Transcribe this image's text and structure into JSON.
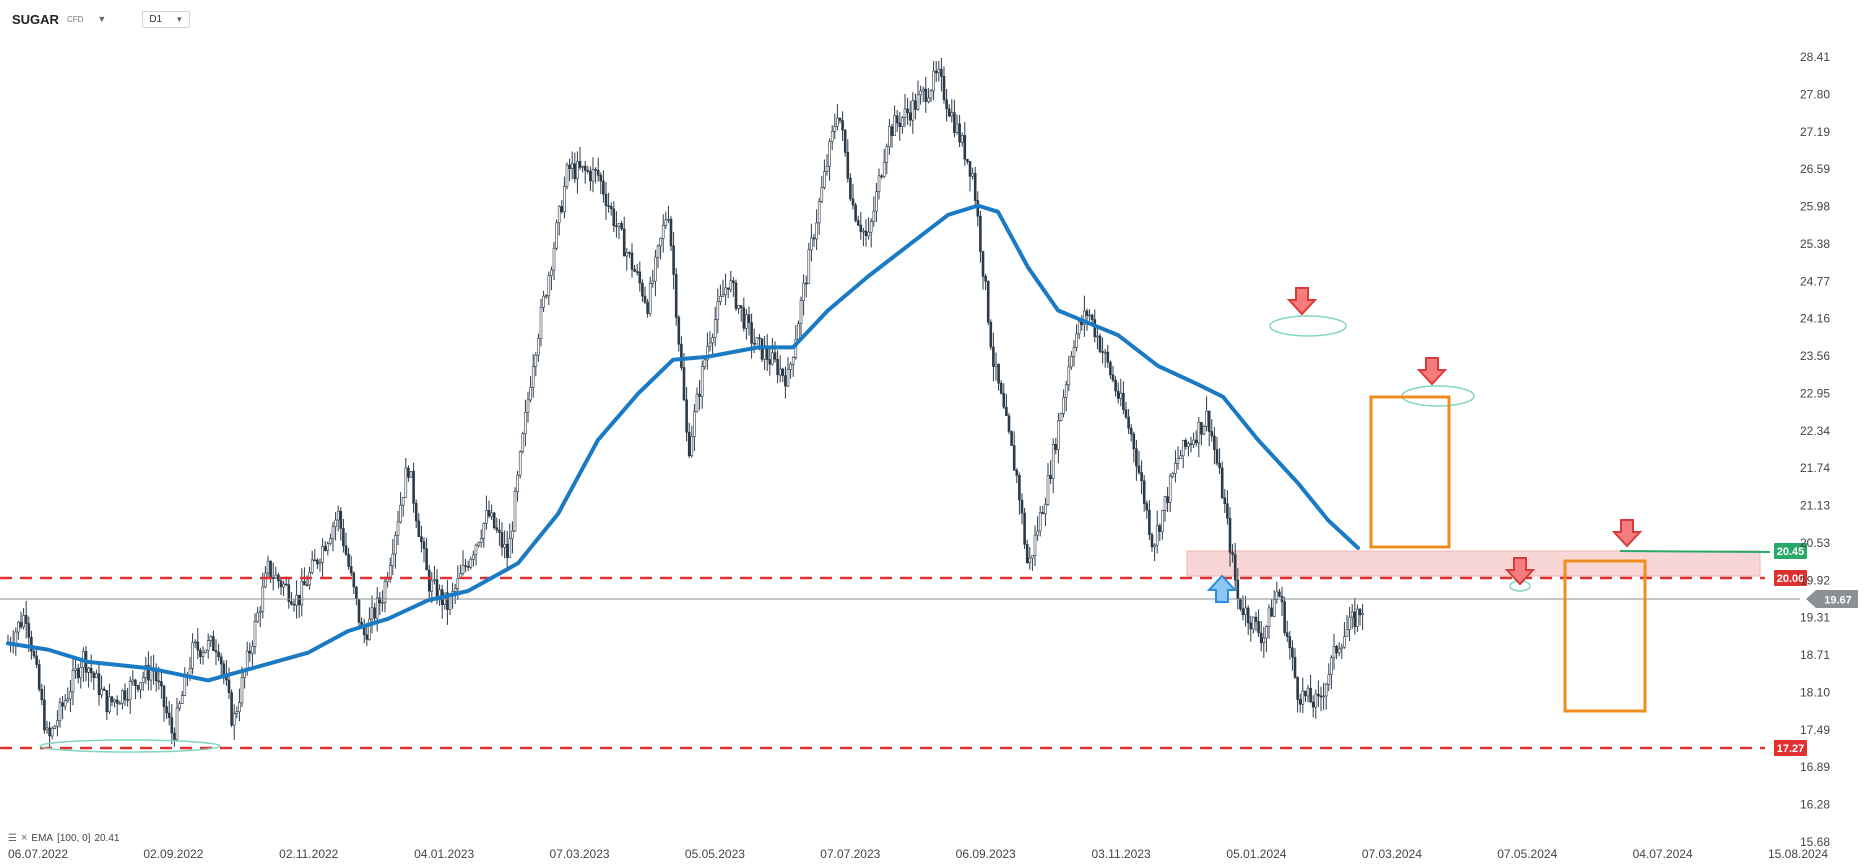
{
  "header": {
    "symbol": "SUGAR",
    "symbol_sub": "CFD",
    "timeframe": "D1"
  },
  "indicator": {
    "label": "EMA",
    "params": "[100, 0]",
    "value": "20.41"
  },
  "colors": {
    "ema": "#1a7ac4",
    "candle": "#2c3a48",
    "support_line": "#e03030",
    "resistance_zone": "#f6c9c9",
    "box": "#f08c1e",
    "sell_arrow": "#e84848",
    "buy_arrow": "#3aa0e8",
    "ellipse": "#7fd6c0",
    "trendline": "#2aa86a",
    "current_price": "#8a9196"
  },
  "chart_data": {
    "type": "line",
    "yticks": [
      "28.41",
      "27.80",
      "27.19",
      "26.59",
      "25.98",
      "25.38",
      "24.77",
      "24.16",
      "23.56",
      "22.95",
      "22.34",
      "21.74",
      "21.13",
      "20.53",
      "19.92",
      "19.31",
      "18.71",
      "18.10",
      "17.49",
      "16.89",
      "16.28",
      "15.68"
    ],
    "xticks": [
      "06.07.2022",
      "02.09.2022",
      "02.11.2022",
      "04.01.2023",
      "07.03.2023",
      "05.05.2023",
      "07.07.2023",
      "06.09.2023",
      "03.11.2023",
      "05.01.2024",
      "07.03.2024",
      "07.05.2024",
      "04.07.2024",
      "15.08.2024"
    ],
    "ylim": [
      15.68,
      28.41
    ],
    "price_path": [
      [
        0,
        18.9
      ],
      [
        18,
        19.4
      ],
      [
        40,
        17.3
      ],
      [
        75,
        18.7
      ],
      [
        100,
        17.9
      ],
      [
        145,
        18.5
      ],
      [
        165,
        17.4
      ],
      [
        185,
        18.8
      ],
      [
        210,
        18.9
      ],
      [
        225,
        17.6
      ],
      [
        260,
        20.1
      ],
      [
        290,
        19.6
      ],
      [
        330,
        21.0
      ],
      [
        355,
        19.0
      ],
      [
        375,
        19.7
      ],
      [
        400,
        21.8
      ],
      [
        420,
        19.9
      ],
      [
        440,
        19.5
      ],
      [
        480,
        21.0
      ],
      [
        500,
        20.3
      ],
      [
        525,
        23.5
      ],
      [
        560,
        26.6
      ],
      [
        590,
        26.5
      ],
      [
        610,
        25.6
      ],
      [
        640,
        24.4
      ],
      [
        660,
        26.0
      ],
      [
        680,
        22.0
      ],
      [
        700,
        23.8
      ],
      [
        720,
        24.8
      ],
      [
        745,
        23.8
      ],
      [
        780,
        23.2
      ],
      [
        805,
        25.5
      ],
      [
        830,
        27.6
      ],
      [
        845,
        26.0
      ],
      [
        860,
        25.4
      ],
      [
        880,
        27.2
      ],
      [
        905,
        27.6
      ],
      [
        930,
        28.1
      ],
      [
        965,
        26.5
      ],
      [
        985,
        23.5
      ],
      [
        1010,
        21.5
      ],
      [
        1020,
        20.1
      ],
      [
        1040,
        21.5
      ],
      [
        1065,
        23.8
      ],
      [
        1080,
        24.3
      ],
      [
        1100,
        23.4
      ],
      [
        1125,
        22.2
      ],
      [
        1145,
        20.5
      ],
      [
        1170,
        21.9
      ],
      [
        1200,
        22.6
      ],
      [
        1215,
        21.3
      ],
      [
        1230,
        19.6
      ],
      [
        1255,
        19.0
      ],
      [
        1270,
        19.8
      ],
      [
        1290,
        18.1
      ],
      [
        1310,
        17.9
      ],
      [
        1330,
        18.9
      ],
      [
        1355,
        19.5
      ]
    ],
    "ema_path": [
      [
        0,
        18.9
      ],
      [
        40,
        18.8
      ],
      [
        80,
        18.6
      ],
      [
        140,
        18.5
      ],
      [
        200,
        18.3
      ],
      [
        245,
        18.5
      ],
      [
        300,
        18.75
      ],
      [
        340,
        19.1
      ],
      [
        380,
        19.3
      ],
      [
        420,
        19.6
      ],
      [
        460,
        19.75
      ],
      [
        510,
        20.2
      ],
      [
        550,
        21.0
      ],
      [
        590,
        22.2
      ],
      [
        630,
        22.95
      ],
      [
        665,
        23.5
      ],
      [
        700,
        23.55
      ],
      [
        750,
        23.7
      ],
      [
        785,
        23.7
      ],
      [
        820,
        24.3
      ],
      [
        860,
        24.85
      ],
      [
        900,
        25.35
      ],
      [
        940,
        25.85
      ],
      [
        970,
        26.0
      ],
      [
        990,
        25.9
      ],
      [
        1020,
        25.0
      ],
      [
        1050,
        24.3
      ],
      [
        1080,
        24.1
      ],
      [
        1110,
        23.9
      ],
      [
        1150,
        23.4
      ],
      [
        1190,
        23.1
      ],
      [
        1215,
        22.9
      ],
      [
        1250,
        22.2
      ],
      [
        1290,
        21.5
      ],
      [
        1320,
        20.9
      ],
      [
        1350,
        20.45
      ]
    ],
    "levels": {
      "price_current": "19.67",
      "resistance_20": "20.00",
      "support_1727": "17.27",
      "trend_2045": "20.45"
    }
  }
}
